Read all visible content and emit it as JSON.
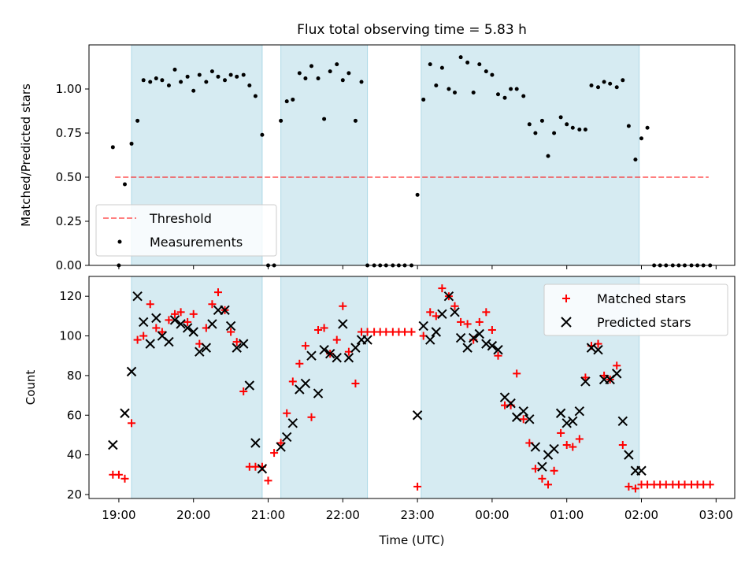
{
  "chart_data": {
    "type": "scatter",
    "title": "Flux total observing time = 5.83 h",
    "xlabel": "Time (UTC)",
    "x_unit": "hours",
    "xlim": [
      18.6,
      27.25
    ],
    "x_ticks": [
      {
        "value": 19,
        "label": "19:00"
      },
      {
        "value": 20,
        "label": "20:00"
      },
      {
        "value": 21,
        "label": "21:00"
      },
      {
        "value": 22,
        "label": "22:00"
      },
      {
        "value": 23,
        "label": "23:00"
      },
      {
        "value": 24,
        "label": "00:00"
      },
      {
        "value": 25,
        "label": "01:00"
      },
      {
        "value": 26,
        "label": "02:00"
      },
      {
        "value": 27,
        "label": "03:00"
      }
    ],
    "observing_windows": [
      [
        19.17,
        20.92
      ],
      [
        21.17,
        22.33
      ],
      [
        23.05,
        25.97
      ]
    ],
    "colors": {
      "window": "#add8e6",
      "threshold": "#ff0000",
      "matched": "#ff0000",
      "predicted": "#000000",
      "measurement": "#000000"
    },
    "ratio_panel": {
      "ylabel": "Matched/Predicted stars",
      "ylim": [
        0,
        1.25
      ],
      "y_ticks": [
        "0.00",
        "0.25",
        "0.50",
        "0.75",
        "1.00"
      ],
      "threshold": {
        "name": "Threshold",
        "y": 0.5,
        "x_range": [
          18.95,
          26.9
        ]
      },
      "legend": {
        "position": "lower-left",
        "entries": [
          "Threshold",
          "Measurements"
        ]
      },
      "measurements": {
        "name": "Measurements",
        "x": [
          18.92,
          19.0,
          19.08,
          19.17,
          19.25,
          19.33,
          19.42,
          19.5,
          19.58,
          19.67,
          19.75,
          19.83,
          19.92,
          20.0,
          20.08,
          20.17,
          20.25,
          20.33,
          20.42,
          20.5,
          20.58,
          20.67,
          20.75,
          20.83,
          20.92,
          21.0,
          21.08,
          21.17,
          21.25,
          21.33,
          21.42,
          21.5,
          21.58,
          21.67,
          21.75,
          21.83,
          21.92,
          22.0,
          22.08,
          22.17,
          22.25,
          22.33,
          22.42,
          22.5,
          22.58,
          22.67,
          22.75,
          22.83,
          22.92,
          23.0,
          23.08,
          23.17,
          23.25,
          23.33,
          23.42,
          23.5,
          23.58,
          23.67,
          23.75,
          23.83,
          23.92,
          24.0,
          24.08,
          24.17,
          24.25,
          24.33,
          24.42,
          24.5,
          24.58,
          24.67,
          24.75,
          24.83,
          24.92,
          25.0,
          25.08,
          25.17,
          25.25,
          25.33,
          25.42,
          25.5,
          25.58,
          25.67,
          25.75,
          25.83,
          25.92,
          26.0,
          26.08,
          26.17,
          26.25,
          26.33,
          26.42,
          26.5,
          26.58,
          26.67,
          26.75,
          26.83,
          26.92
        ],
        "y": [
          0.67,
          0.0,
          0.46,
          0.69,
          0.82,
          1.05,
          1.04,
          1.06,
          1.05,
          1.02,
          1.11,
          1.04,
          1.07,
          0.99,
          1.08,
          1.04,
          1.1,
          1.07,
          1.05,
          1.08,
          1.07,
          1.08,
          1.02,
          0.96,
          0.74,
          0.0,
          0.0,
          0.82,
          0.93,
          0.94,
          1.09,
          1.06,
          1.13,
          1.06,
          0.83,
          1.1,
          1.14,
          1.05,
          1.09,
          0.82,
          1.04,
          0.0,
          0.0,
          0.0,
          0.0,
          0.0,
          0.0,
          0.0,
          0.0,
          0.4,
          0.94,
          1.14,
          1.02,
          1.12,
          1.0,
          0.98,
          1.18,
          1.15,
          0.98,
          1.14,
          1.1,
          1.08,
          0.97,
          0.95,
          1.0,
          1.0,
          0.96,
          0.8,
          0.75,
          0.82,
          0.62,
          0.75,
          0.84,
          0.8,
          0.78,
          0.77,
          0.77,
          1.02,
          1.01,
          1.04,
          1.03,
          1.01,
          1.05,
          0.79,
          0.6,
          0.72,
          0.78,
          0.0,
          0.0,
          0.0,
          0.0,
          0.0,
          0.0,
          0.0,
          0.0,
          0.0,
          0.0
        ]
      }
    },
    "count_panel": {
      "ylabel": "Count",
      "ylim": [
        18,
        130
      ],
      "y_ticks": [
        "20",
        "40",
        "60",
        "80",
        "100",
        "120"
      ],
      "legend": {
        "position": "top-right",
        "entries": [
          "Matched stars",
          "Predicted stars"
        ]
      },
      "series": [
        {
          "name": "Matched stars",
          "marker": "plus",
          "x": [
            18.92,
            19.0,
            19.08,
            19.17,
            19.25,
            19.33,
            19.42,
            19.5,
            19.58,
            19.67,
            19.75,
            19.83,
            19.92,
            20.0,
            20.08,
            20.17,
            20.25,
            20.33,
            20.42,
            20.5,
            20.58,
            20.67,
            20.75,
            20.83,
            20.92,
            21.0,
            21.08,
            21.17,
            21.25,
            21.33,
            21.42,
            21.5,
            21.58,
            21.67,
            21.75,
            21.83,
            21.92,
            22.0,
            22.08,
            22.17,
            22.25,
            22.33,
            22.42,
            22.5,
            22.58,
            22.67,
            22.75,
            22.83,
            22.92,
            23.0,
            23.08,
            23.17,
            23.25,
            23.33,
            23.42,
            23.5,
            23.58,
            23.67,
            23.75,
            23.83,
            23.92,
            24.0,
            24.08,
            24.17,
            24.25,
            24.33,
            24.42,
            24.5,
            24.58,
            24.67,
            24.75,
            24.83,
            24.92,
            25.0,
            25.08,
            25.17,
            25.25,
            25.33,
            25.42,
            25.5,
            25.58,
            25.67,
            25.75,
            25.83,
            25.92,
            26.0,
            26.08,
            26.17,
            26.25,
            26.33,
            26.42,
            26.5,
            26.58,
            26.67,
            26.75,
            26.83,
            26.92
          ],
          "y": [
            30,
            30,
            28,
            56,
            98,
            100,
            116,
            104,
            102,
            108,
            111,
            112,
            107,
            111,
            96,
            104,
            116,
            122,
            113,
            102,
            97,
            72,
            34,
            34,
            34,
            27,
            41,
            46,
            61,
            77,
            86,
            95,
            59,
            103,
            104,
            91,
            98,
            115,
            92,
            76,
            102,
            102,
            102,
            102,
            102,
            102,
            102,
            102,
            102,
            24,
            100,
            112,
            110,
            124,
            120,
            115,
            107,
            106,
            98,
            107,
            112,
            103,
            90,
            65,
            65,
            81,
            58,
            46,
            33,
            28,
            25,
            32,
            51,
            45,
            44,
            48,
            79,
            95,
            96,
            80,
            78,
            85,
            45,
            24,
            23,
            25,
            25,
            25,
            25,
            25,
            25,
            25,
            25,
            25,
            25,
            25,
            25
          ]
        },
        {
          "name": "Predicted stars",
          "marker": "x",
          "x": [
            18.92,
            19.08,
            19.17,
            19.25,
            19.33,
            19.42,
            19.5,
            19.58,
            19.67,
            19.75,
            19.83,
            19.92,
            20.0,
            20.08,
            20.17,
            20.25,
            20.33,
            20.42,
            20.5,
            20.58,
            20.67,
            20.75,
            20.83,
            20.92,
            21.17,
            21.25,
            21.33,
            21.42,
            21.5,
            21.58,
            21.67,
            21.75,
            21.83,
            21.92,
            22.0,
            22.08,
            22.17,
            22.25,
            22.33,
            23.0,
            23.08,
            23.17,
            23.25,
            23.33,
            23.42,
            23.5,
            23.58,
            23.67,
            23.75,
            23.83,
            23.92,
            24.0,
            24.08,
            24.17,
            24.25,
            24.33,
            24.42,
            24.5,
            24.58,
            24.67,
            24.75,
            24.83,
            24.92,
            25.0,
            25.08,
            25.17,
            25.25,
            25.33,
            25.42,
            25.5,
            25.58,
            25.67,
            25.75,
            25.83,
            25.92,
            26.0
          ],
          "y": [
            45,
            61,
            82,
            120,
            107,
            96,
            109,
            100,
            97,
            108,
            106,
            104,
            102,
            92,
            94,
            106,
            113,
            113,
            105,
            94,
            96,
            75,
            46,
            33,
            44,
            49,
            56,
            73,
            76,
            90,
            71,
            93,
            91,
            89,
            106,
            89,
            94,
            98,
            98,
            60,
            105,
            98,
            102,
            111,
            120,
            112,
            99,
            94,
            99,
            101,
            96,
            95,
            93,
            69,
            66,
            59,
            62,
            58,
            44,
            34,
            40,
            43,
            61,
            56,
            57,
            62,
            77,
            94,
            93,
            78,
            78,
            81,
            57,
            40,
            32,
            32
          ]
        }
      ]
    }
  }
}
